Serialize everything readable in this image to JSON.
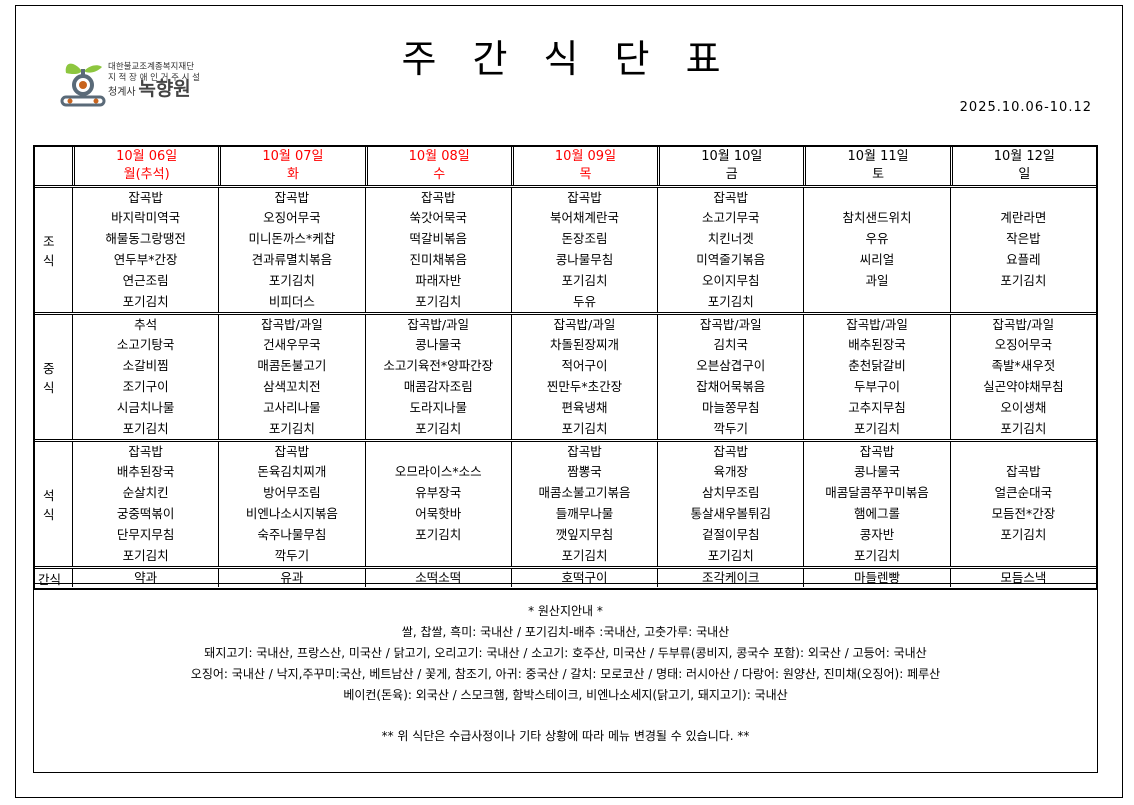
{
  "header": {
    "title": "주 간 식 단 표",
    "period": "2025.10.06-10.12",
    "logo": {
      "line1": "대한불교조계종복지재단",
      "line2": "지 적 장 애 인 거 주 시 설",
      "prefix": "청계사",
      "name": "녹향원"
    }
  },
  "colors": {
    "holiday": "#ff0000",
    "border": "#000000"
  },
  "days": [
    {
      "date": "10월 06일",
      "weekday": "월(추석)",
      "holiday": true
    },
    {
      "date": "10월 07일",
      "weekday": "화",
      "holiday": true
    },
    {
      "date": "10월 08일",
      "weekday": "수",
      "holiday": true
    },
    {
      "date": "10월 09일",
      "weekday": "목",
      "holiday": true
    },
    {
      "date": "10월 10일",
      "weekday": "금",
      "holiday": false
    },
    {
      "date": "10월 11일",
      "weekday": "토",
      "holiday": false
    },
    {
      "date": "10월 12일",
      "weekday": "일",
      "holiday": false
    }
  ],
  "meals": [
    {
      "label": [
        "조",
        "식"
      ],
      "items": [
        [
          "잡곡밥",
          "바지락미역국",
          "해물동그랑땡전",
          "연두부*간장",
          "연근조림",
          "포기김치"
        ],
        [
          "잡곡밥",
          "오징어무국",
          "미니돈까스*케찹",
          "견과류멸치볶음",
          "포기김치",
          "비피더스"
        ],
        [
          "잡곡밥",
          "쑥갓어묵국",
          "떡갈비볶음",
          "진미채볶음",
          "파래자반",
          "포기김치"
        ],
        [
          "잡곡밥",
          "북어채계란국",
          "돈장조림",
          "콩나물무침",
          "포기김치",
          "두유"
        ],
        [
          "잡곡밥",
          "소고기무국",
          "치킨너겟",
          "미역줄기볶음",
          "오이지무침",
          "포기김치"
        ],
        [
          "참치샌드위치",
          "우유",
          "씨리얼",
          "과일"
        ],
        [
          "계란라면",
          "작은밥",
          "요플레",
          "포기김치"
        ]
      ]
    },
    {
      "label": [
        "중",
        "식"
      ],
      "items": [
        [
          "추석",
          "소고기탕국",
          "소갈비찜",
          "조기구이",
          "시금치나물",
          "포기김치"
        ],
        [
          "잡곡밥/과일",
          "건새우무국",
          "매콤돈불고기",
          "삼색꼬치전",
          "고사리나물",
          "포기김치"
        ],
        [
          "잡곡밥/과일",
          "콩나물국",
          "소고기육전*양파간장",
          "매콤감자조림",
          "도라지나물",
          "포기김치"
        ],
        [
          "잡곡밥/과일",
          "차돌된장찌개",
          "적어구이",
          "찐만두*초간장",
          "편육냉채",
          "포기김치"
        ],
        [
          "잡곡밥/과일",
          "김치국",
          "오븐삼겹구이",
          "잡채어묵볶음",
          "마늘쫑무침",
          "깍두기"
        ],
        [
          "잡곡밥/과일",
          "배추된장국",
          "춘천닭갈비",
          "두부구이",
          "고추지무침",
          "포기김치"
        ],
        [
          "잡곡밥/과일",
          "오징어무국",
          "족발*새우젓",
          "실곤약야채무침",
          "오이생채",
          "포기김치"
        ]
      ]
    },
    {
      "label": [
        "석",
        "식"
      ],
      "items": [
        [
          "잡곡밥",
          "배추된장국",
          "순살치킨",
          "궁중떡볶이",
          "단무지무침",
          "포기김치"
        ],
        [
          "잡곡밥",
          "돈육김치찌개",
          "방어무조림",
          "비엔나소시지볶음",
          "숙주나물무침",
          "깍두기"
        ],
        [
          "오므라이스*소스",
          "유부장국",
          "어묵핫바",
          "포기김치"
        ],
        [
          "잡곡밥",
          "짬뽕국",
          "매콤소불고기볶음",
          "들깨무나물",
          "깻잎지무침",
          "포기김치"
        ],
        [
          "잡곡밥",
          "육개장",
          "삼치무조림",
          "통살새우볼튀김",
          "겉절이무침",
          "포기김치"
        ],
        [
          "잡곡밥",
          "콩나물국",
          "매콤달콤쭈꾸미볶음",
          "햄에그롤",
          "콩자반",
          "포기김치"
        ],
        [
          "잡곡밥",
          "얼큰순대국",
          "모듬전*간장",
          "포기김치"
        ]
      ]
    }
  ],
  "snack": {
    "label": "간식",
    "items": [
      "약과",
      "유과",
      "소떡소떡",
      "호떡구이",
      "조각케이크",
      "마들렌빵",
      "모듬스낵"
    ]
  },
  "notes": {
    "heading": "* 원산지안내 *",
    "lines": [
      "쌀, 찹쌀, 흑미: 국내산  / 포기김치-배추 :국내산, 고춧가루: 국내산",
      "돼지고기: 국내산, 프랑스산, 미국산 / 닭고기, 오리고기: 국내산 / 소고기: 호주산, 미국산  / 두부류(콩비지, 콩국수 포함): 외국산 / 고등어: 국내산",
      "오징어: 국내산 / 낙지,주꾸미:국산, 베트남산 / 꽃게, 참조기, 아귀: 중국산 / 갈치: 모로코산 / 명태: 러시아산 / 다랑어: 원양산, 진미채(오징어): 페루산",
      "베이컨(돈육): 외국산 / 스모크햄, 함박스테이크, 비엔나소세지(닭고기, 돼지고기): 국내산"
    ],
    "warning": "** 위 식단은 수급사정이나 기타 상황에 따라 메뉴 변경될 수 있습니다. **"
  }
}
